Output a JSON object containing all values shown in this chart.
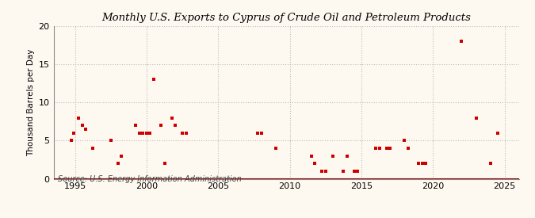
{
  "title": "Monthly U.S. Exports to Cyprus of Crude Oil and Petroleum Products",
  "ylabel": "Thousand Barrels per Day",
  "source": "Source: U.S. Energy Information Administration",
  "background_color": "#fef9f0",
  "plot_bg_color": "#fef9f0",
  "marker_color": "#cc0000",
  "line_color": "#990000",
  "grid_color": "#bbbbbb",
  "xlim": [
    1993.5,
    2026
  ],
  "ylim": [
    0,
    20
  ],
  "yticks": [
    0,
    5,
    10,
    15,
    20
  ],
  "xticks": [
    1995,
    2000,
    2005,
    2010,
    2015,
    2020,
    2025
  ],
  "data_points": [
    [
      1994.75,
      5.0
    ],
    [
      1994.92,
      6.0
    ],
    [
      1995.25,
      8.0
    ],
    [
      1995.5,
      7.0
    ],
    [
      1995.75,
      6.5
    ],
    [
      1996.25,
      4.0
    ],
    [
      1997.5,
      5.0
    ],
    [
      1998.0,
      2.0
    ],
    [
      1998.25,
      3.0
    ],
    [
      1999.25,
      7.0
    ],
    [
      1999.5,
      6.0
    ],
    [
      1999.75,
      6.0
    ],
    [
      2000.0,
      6.0
    ],
    [
      2000.25,
      6.0
    ],
    [
      2000.5,
      13.0
    ],
    [
      2001.0,
      7.0
    ],
    [
      2001.25,
      2.0
    ],
    [
      2001.75,
      8.0
    ],
    [
      2002.0,
      7.0
    ],
    [
      2002.5,
      6.0
    ],
    [
      2002.75,
      6.0
    ],
    [
      2007.75,
      6.0
    ],
    [
      2008.0,
      6.0
    ],
    [
      2009.0,
      4.0
    ],
    [
      2011.5,
      3.0
    ],
    [
      2011.75,
      2.0
    ],
    [
      2012.25,
      1.0
    ],
    [
      2012.5,
      1.0
    ],
    [
      2013.0,
      3.0
    ],
    [
      2013.75,
      1.0
    ],
    [
      2014.0,
      3.0
    ],
    [
      2014.5,
      1.0
    ],
    [
      2014.75,
      1.0
    ],
    [
      2016.0,
      4.0
    ],
    [
      2016.25,
      4.0
    ],
    [
      2016.75,
      4.0
    ],
    [
      2017.0,
      4.0
    ],
    [
      2018.0,
      5.0
    ],
    [
      2018.25,
      4.0
    ],
    [
      2019.0,
      2.0
    ],
    [
      2019.25,
      2.0
    ],
    [
      2019.5,
      2.0
    ],
    [
      2022.0,
      18.0
    ],
    [
      2023.0,
      8.0
    ],
    [
      2024.0,
      2.0
    ],
    [
      2024.5,
      6.0
    ]
  ]
}
